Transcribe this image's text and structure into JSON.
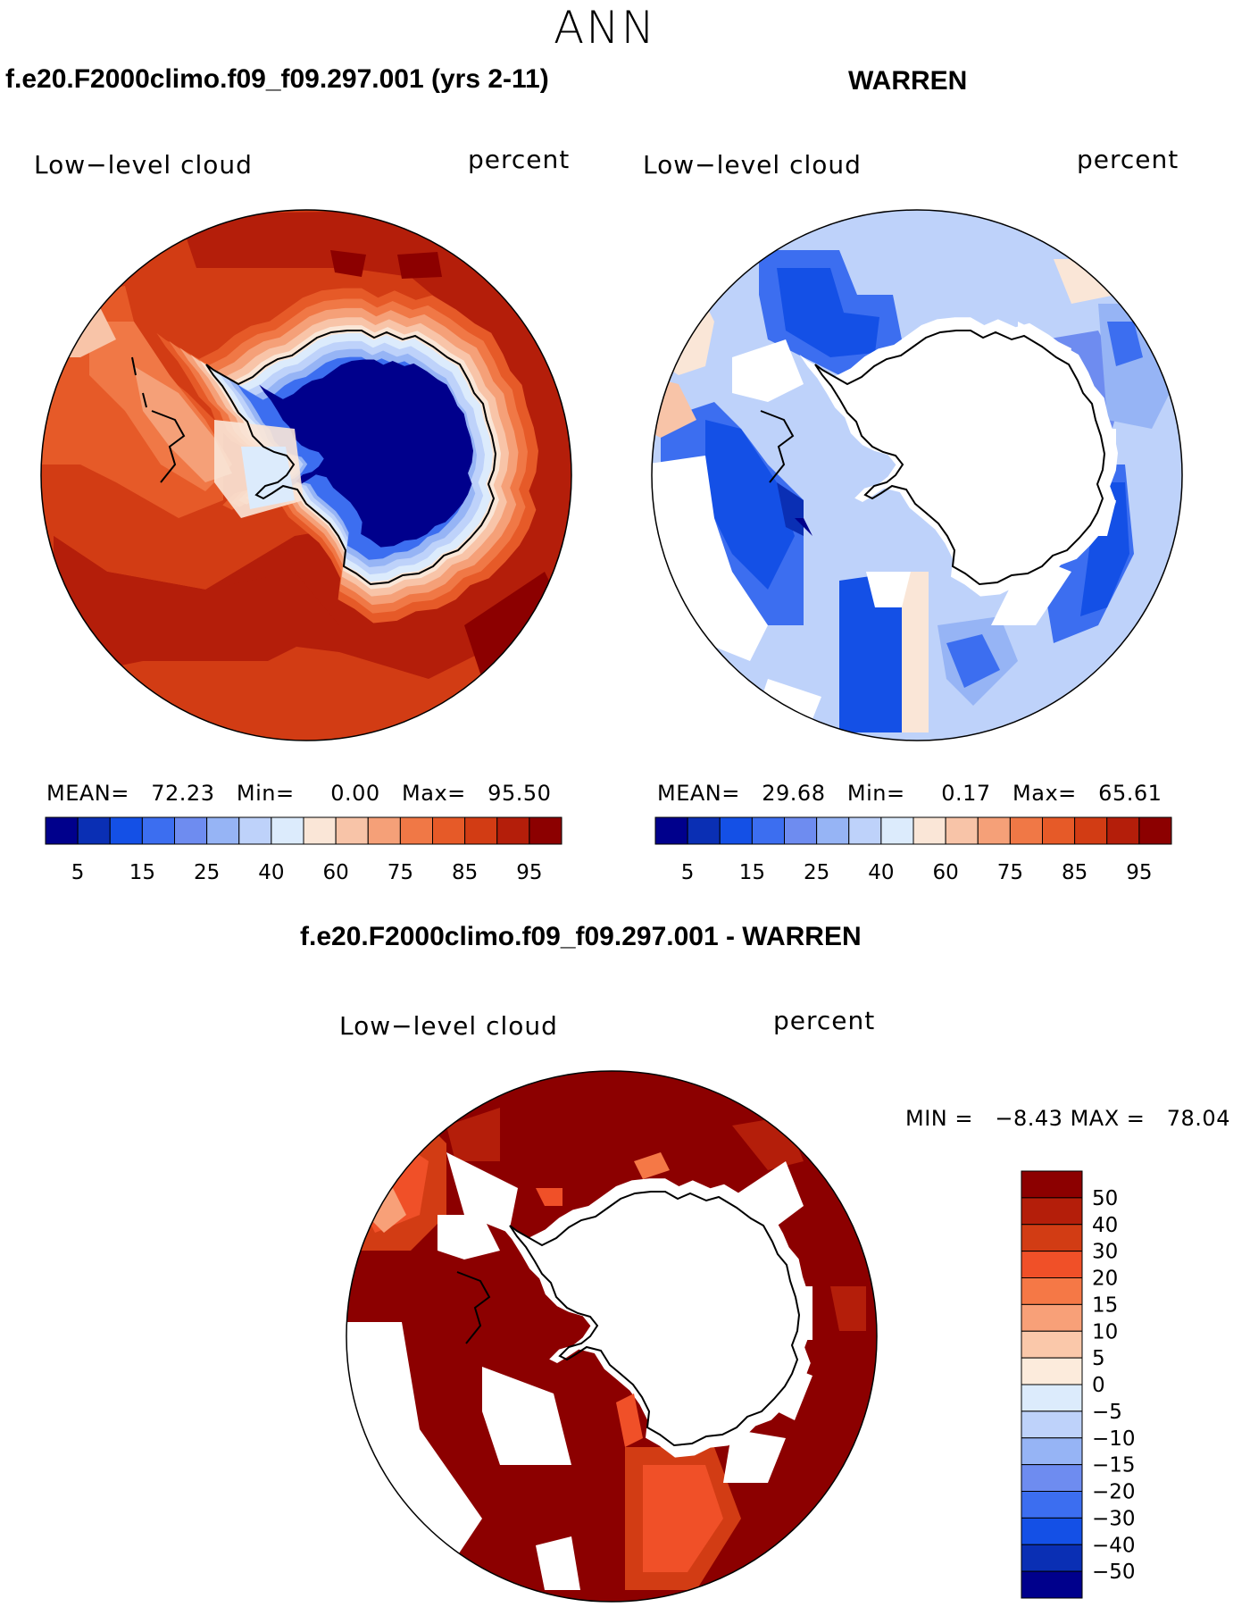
{
  "page": {
    "season": "ANN",
    "case_title": "f.e20.F2000climo.f09_f09.297.001 (yrs 2-11)",
    "obs_title": "WARREN",
    "diff_title": "f.e20.F2000climo.f09_f09.297.001 - WARREN"
  },
  "panels": {
    "model": {
      "variable": "Low−level cloud",
      "units": "percent",
      "mean_label": "MEAN=",
      "mean": "72.23",
      "min_label": "Min=",
      "min": "0.00",
      "max_label": "Max=",
      "max": "95.50"
    },
    "obs": {
      "variable": "Low−level cloud",
      "units": "percent",
      "mean_label": "MEAN=",
      "mean": "29.68",
      "min_label": "Min=",
      "min": "0.17",
      "max_label": "Max=",
      "max": "65.61"
    },
    "diff": {
      "variable": "Low−level cloud",
      "units": "percent",
      "min_label": "MIN =",
      "min": "−8.43",
      "max_label": "MAX =",
      "max": "78.04"
    }
  },
  "colorbars": {
    "field": {
      "colors": [
        "#00008c",
        "#0a2fb4",
        "#1450e6",
        "#3c6ef0",
        "#6e8cf0",
        "#96b4f5",
        "#bed2fa",
        "#dcebfc",
        "#fae6d7",
        "#f8c4a8",
        "#f5a078",
        "#f07846",
        "#e65a28",
        "#d23c14",
        "#b41e0a",
        "#8c0000"
      ],
      "tick_labels": [
        "5",
        "15",
        "25",
        "40",
        "60",
        "75",
        "85",
        "95"
      ]
    },
    "diff": {
      "colors": [
        "#8c0000",
        "#b41e0a",
        "#d23c14",
        "#f05028",
        "#f57846",
        "#f8a078",
        "#fac8aa",
        "#fcebdc",
        "#dcebfc",
        "#bed2fa",
        "#96b4f5",
        "#6e8cf0",
        "#3c6ef0",
        "#1450e6",
        "#0a2fb4",
        "#00008c"
      ],
      "tick_labels": [
        "50",
        "40",
        "30",
        "20",
        "15",
        "10",
        "5",
        "0",
        "−5",
        "−10",
        "−15",
        "−20",
        "−30",
        "−40",
        "−50"
      ]
    }
  }
}
